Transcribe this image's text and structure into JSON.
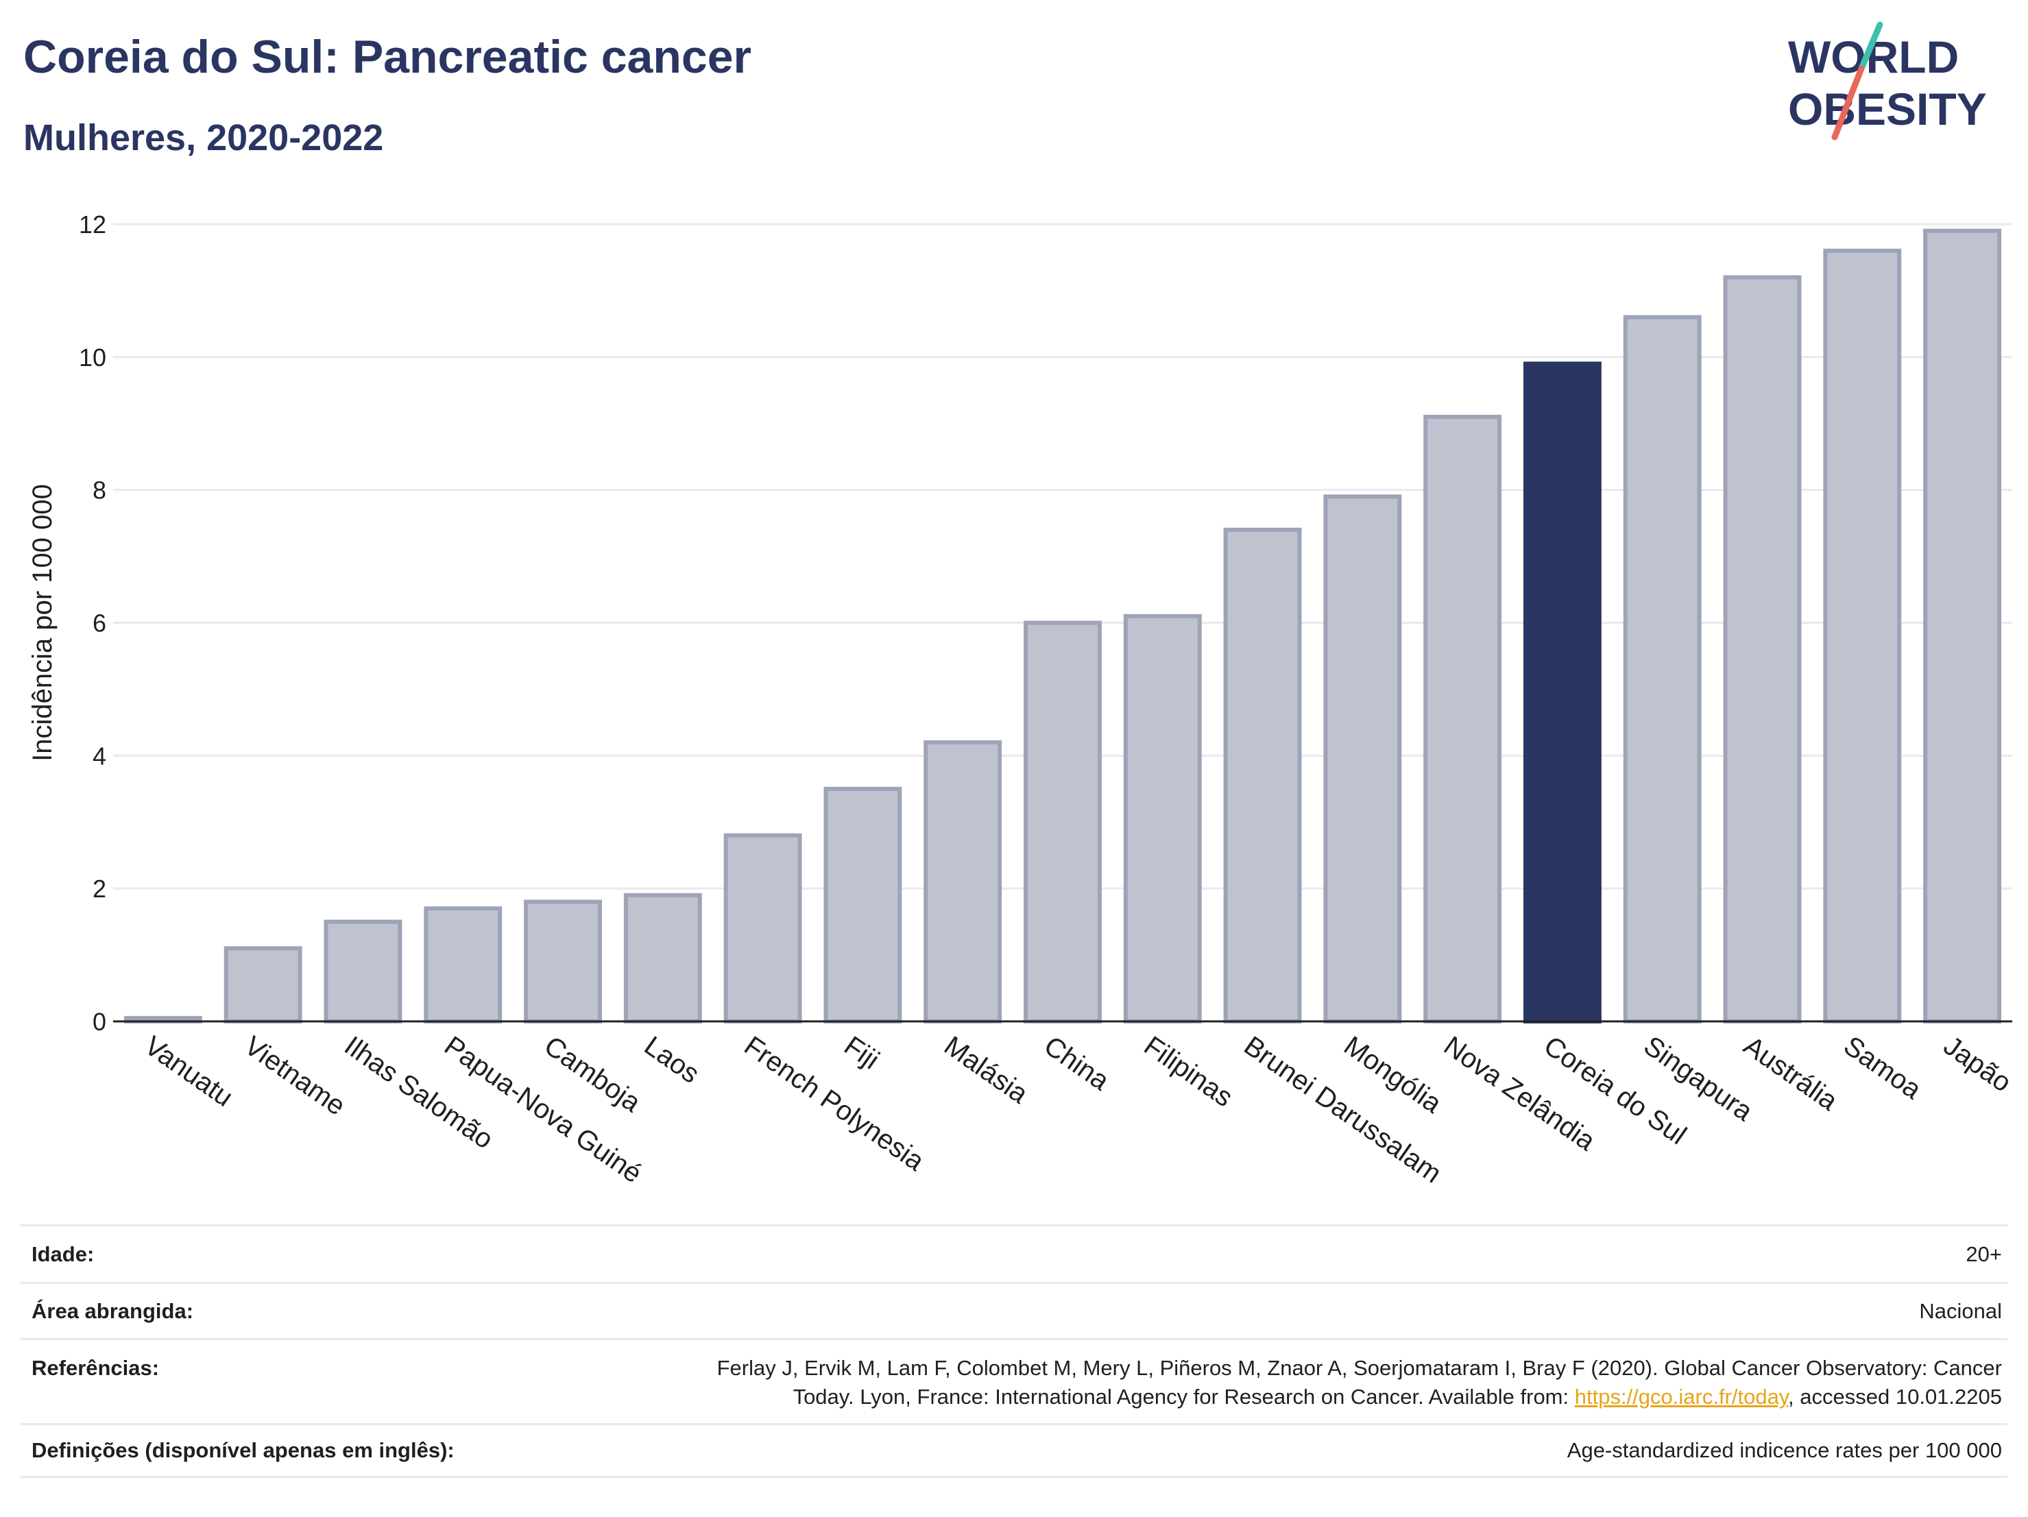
{
  "header": {
    "title": "Coreia do Sul: Pancreatic cancer",
    "subtitle": "Mulheres, 2020-2022"
  },
  "logo": {
    "line1": "WORLD",
    "line2": "OBESITY",
    "text_color": "#2a3562",
    "slash_colors": [
      "#3fbfb0",
      "#e8685a"
    ]
  },
  "colors": {
    "bar_default": "#bfc2cf",
    "bar_stroke": "#9ea3b8",
    "bar_highlight": "#2a3562",
    "grid": "#e9e9ee",
    "axis_line": "#222222"
  },
  "chart_data": {
    "type": "bar",
    "ylabel": "Incidência por 100 000",
    "ylim": [
      0,
      12
    ],
    "yticks": [
      0,
      2,
      4,
      6,
      8,
      10,
      12
    ],
    "grid": true,
    "highlight": "Coreia do Sul",
    "categories": [
      "Vanuatu",
      "Vietname",
      "Ilhas Salomão",
      "Papua-Nova Guiné",
      "Camboja",
      "Laos",
      "French Polynesia",
      "Fiji",
      "Malásia",
      "China",
      "Filipinas",
      "Brunei Darussalam",
      "Mongólia",
      "Nova Zelândia",
      "Coreia do Sul",
      "Singapura",
      "Austrália",
      "Samoa",
      "Japão"
    ],
    "values": [
      0.05,
      1.1,
      1.5,
      1.7,
      1.8,
      1.9,
      2.8,
      3.5,
      4.2,
      6.0,
      6.1,
      7.4,
      7.9,
      9.1,
      9.9,
      10.6,
      11.2,
      11.6,
      11.9
    ]
  },
  "info": {
    "age_label": "Idade:",
    "age_value": "20+",
    "area_label": "Área abrangida:",
    "area_value": "Nacional",
    "refs_label": "Referências:",
    "refs_text_line1": "Ferlay J, Ervik M, Lam F, Colombet M, Mery L, Piñeros M, Znaor A, Soerjomataram I, Bray F (2020). Global Cancer Observatory: Cancer",
    "refs_text_before": "Today. Lyon, France: International Agency for Research on Cancer. Available from: ",
    "refs_link": "https://gco.iarc.fr/today",
    "refs_text_after": ", accessed 10.01.2205",
    "defs_label": "Definições (disponível apenas em inglês):",
    "defs_value": "Age-standardized indicence rates per 100 000"
  }
}
